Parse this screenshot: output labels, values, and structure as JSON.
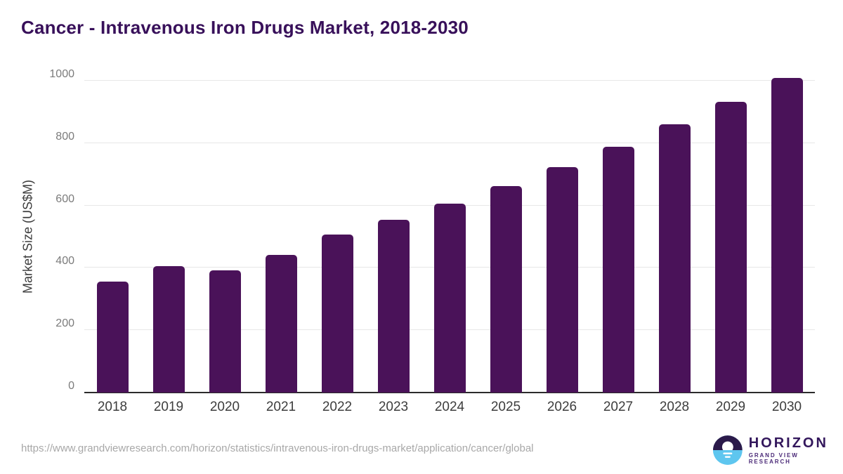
{
  "title": "Cancer - Intravenous Iron Drugs Market, 2018-2030",
  "chart_data": {
    "type": "bar",
    "title": "Cancer - Intravenous Iron Drugs Market, 2018-2030",
    "categories": [
      "2018",
      "2019",
      "2020",
      "2021",
      "2022",
      "2023",
      "2024",
      "2025",
      "2026",
      "2027",
      "2028",
      "2029",
      "2030"
    ],
    "values": [
      357,
      405,
      392,
      442,
      507,
      555,
      606,
      663,
      724,
      789,
      861,
      933,
      1008
    ],
    "xlabel": "",
    "ylabel": "Market Size (US$M)",
    "ylim": [
      0,
      1000
    ],
    "yticks": [
      0,
      200,
      400,
      600,
      800,
      1000
    ],
    "grid": true,
    "legend": "none",
    "bar_color": "#4a1259"
  },
  "colors": {
    "title_text": "#38105a",
    "bar": "#4a1259",
    "gridline": "#e7e7e7",
    "axis_line": "#2b2b2b",
    "y_tick_text": "#7b7b7b",
    "x_tick_text": "#3d3d3d",
    "url_text": "#a8a8a8",
    "logo_dark": "#2b1a4a",
    "logo_blue": "#5ec6ef"
  },
  "footer": {
    "source_url": "https://www.grandviewresearch.com/horizon/statistics/intravenous-iron-drugs-market/application/cancer/global",
    "logo": {
      "name": "HORIZON",
      "subtitle": "GRAND VIEW RESEARCH"
    }
  }
}
